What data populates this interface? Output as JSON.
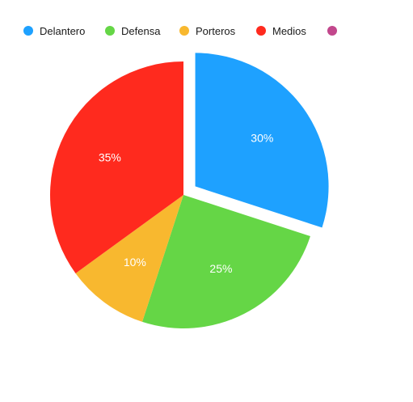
{
  "chart_data": {
    "type": "pie",
    "title": "",
    "series": [
      {
        "name": "Delantero",
        "value": 30,
        "label": "30%",
        "color": "#1EA1FF",
        "exploded": true
      },
      {
        "name": "Defensa",
        "value": 25,
        "label": "25%",
        "color": "#65D646",
        "exploded": false
      },
      {
        "name": "Porteros",
        "value": 10,
        "label": "10%",
        "color": "#F8B82F",
        "exploded": false
      },
      {
        "name": "Medios",
        "value": 35,
        "label": "35%",
        "color": "#FF2A1E",
        "exploded": false
      },
      {
        "name": "",
        "value": 0,
        "label": "",
        "color": "#C2478C",
        "exploded": false
      }
    ],
    "legend": {
      "position": "top-left"
    }
  }
}
